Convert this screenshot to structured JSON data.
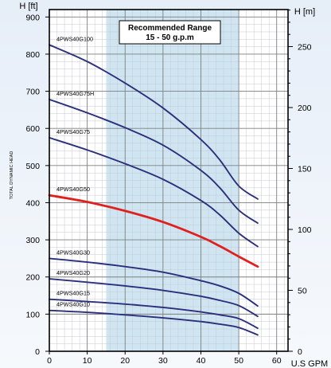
{
  "chart_data": {
    "type": "line",
    "title": "",
    "annotation": {
      "line1": "Recommended Range",
      "line2": "15 - 50 g.p.m",
      "range_x": [
        15,
        50
      ]
    },
    "xlabel": "U.S GPM",
    "ylabel_left_title": "H [ft]",
    "ylabel_right_title": "H [m]",
    "ylabel_side": "TOTAL DYNAMIC HEAD",
    "xlim": [
      0,
      63
    ],
    "ylim": [
      0,
      920
    ],
    "ylim_right": [
      0,
      280.4
    ],
    "x_ticks": [
      0,
      10,
      20,
      30,
      40,
      50,
      60
    ],
    "y_ticks": [
      0,
      100,
      200,
      300,
      400,
      500,
      600,
      700,
      800,
      900
    ],
    "y_ticks_right": [
      0,
      50,
      100,
      150,
      200,
      250
    ],
    "grid": true,
    "colors": {
      "series": "#2b2f7c",
      "highlight": "#e0201f",
      "band": "#cfe6f2",
      "background": "#eef3f9"
    },
    "series": [
      {
        "name": "4PWS40G100",
        "x": [
          0,
          10,
          20,
          30,
          40,
          45,
          50,
          55
        ],
        "values": [
          825,
          780,
          722,
          655,
          570,
          515,
          445,
          410
        ],
        "highlight": false
      },
      {
        "name": "4PWS40G75H",
        "x": [
          0,
          10,
          20,
          30,
          40,
          45,
          50,
          55
        ],
        "values": [
          678,
          642,
          602,
          555,
          487,
          440,
          380,
          345
        ],
        "highlight": false
      },
      {
        "name": "4PWS40G75",
        "x": [
          0,
          10,
          20,
          30,
          40,
          45,
          50,
          55
        ],
        "values": [
          575,
          542,
          505,
          463,
          406,
          367,
          318,
          282
        ],
        "highlight": false
      },
      {
        "name": "4PWS40G50",
        "x": [
          0,
          10,
          20,
          30,
          40,
          45,
          50,
          55
        ],
        "values": [
          420,
          402,
          378,
          348,
          308,
          283,
          255,
          228
        ],
        "highlight": true
      },
      {
        "name": "4PWS40G30",
        "x": [
          0,
          10,
          20,
          30,
          40,
          45,
          50,
          55
        ],
        "values": [
          250,
          240,
          228,
          213,
          190,
          176,
          156,
          122
        ],
        "highlight": false
      },
      {
        "name": "4PWS40G20",
        "x": [
          0,
          10,
          20,
          30,
          40,
          45,
          50,
          55
        ],
        "values": [
          195,
          186,
          176,
          164,
          148,
          137,
          123,
          94
        ],
        "highlight": false
      },
      {
        "name": "4PWS40G15",
        "x": [
          0,
          10,
          20,
          30,
          40,
          45,
          50,
          55
        ],
        "values": [
          140,
          134,
          127,
          118,
          106,
          98,
          88,
          62
        ],
        "highlight": false
      },
      {
        "name": "4PWS40G10",
        "x": [
          0,
          10,
          20,
          30,
          40,
          45,
          50,
          55
        ],
        "values": [
          110,
          105,
          98,
          90,
          80,
          73,
          64,
          44
        ],
        "highlight": false
      }
    ]
  }
}
